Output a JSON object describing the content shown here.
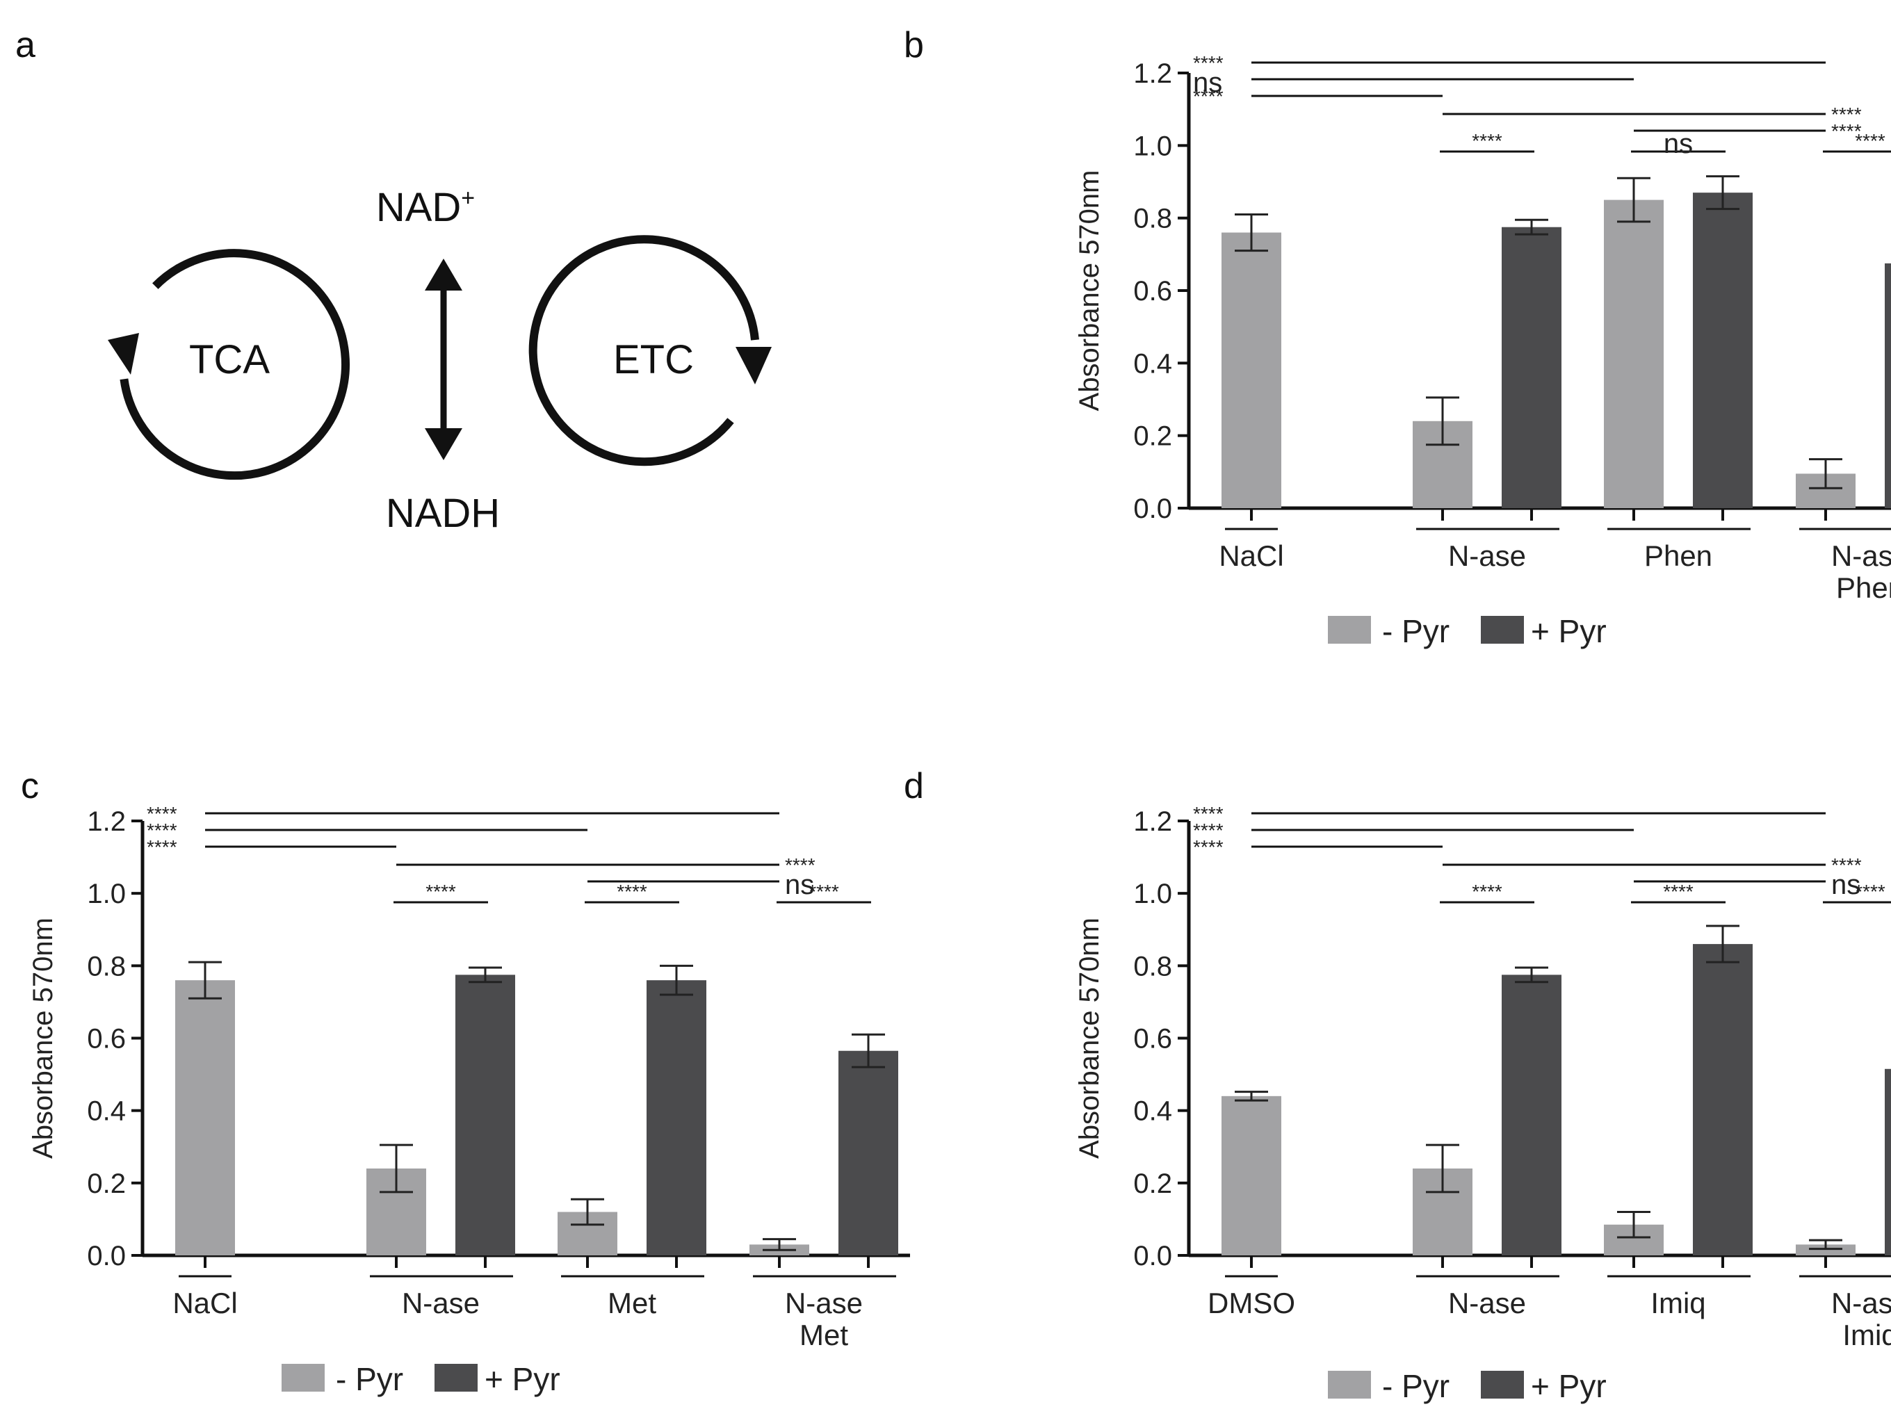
{
  "panels": {
    "a": "a",
    "b": "b",
    "c": "c",
    "d": "d"
  },
  "diagram": {
    "left_cycle": "TCA",
    "right_cycle": "ETC",
    "top_label": "NAD",
    "top_label_sup": "+",
    "bottom_label": "NADH"
  },
  "legend": {
    "minus_label": "- Pyr",
    "plus_label": "+ Pyr",
    "minus_color": "#a2a2a4",
    "plus_color": "#4b4b4d"
  },
  "chart_data": [
    {
      "panel": "b",
      "type": "bar",
      "ylabel": "Absorbance 570nm",
      "ylim": [
        0,
        1.2
      ],
      "yticks": [
        "0.0",
        "0.2",
        "0.4",
        "0.6",
        "0.8",
        "1.0",
        "1.2"
      ],
      "groups": [
        {
          "lines": [
            "NaCl"
          ],
          "bars": [
            {
              "series": "- Pyr",
              "value": 0.76,
              "error": 0.05
            }
          ]
        },
        {
          "lines": [
            "N-ase"
          ],
          "bars": [
            {
              "series": "- Pyr",
              "value": 0.24,
              "error": 0.065
            },
            {
              "series": "+ Pyr",
              "value": 0.775,
              "error": 0.02
            }
          ]
        },
        {
          "lines": [
            "Phen"
          ],
          "bars": [
            {
              "series": "- Pyr",
              "value": 0.85,
              "error": 0.06
            },
            {
              "series": "+ Pyr",
              "value": 0.87,
              "error": 0.045
            }
          ]
        },
        {
          "lines": [
            "N-ase",
            "Phen"
          ],
          "bars": [
            {
              "series": "- Pyr",
              "value": 0.095,
              "error": 0.04
            },
            {
              "series": "+ Pyr",
              "value": 0.675,
              "error": 0.085
            }
          ]
        }
      ],
      "comparisons": [
        {
          "from": [
            0,
            0
          ],
          "to": [
            3,
            0
          ],
          "label": "****"
        },
        {
          "from": [
            0,
            0
          ],
          "to": [
            2,
            0
          ],
          "label": "ns"
        },
        {
          "from": [
            0,
            0
          ],
          "to": [
            1,
            0
          ],
          "label": "****"
        },
        {
          "from": [
            1,
            0
          ],
          "to": [
            3,
            0
          ],
          "label": "****"
        },
        {
          "from": [
            2,
            0
          ],
          "to": [
            3,
            0
          ],
          "label": "****"
        },
        {
          "from": [
            1,
            0
          ],
          "to": [
            1,
            1
          ],
          "label": "****"
        },
        {
          "from": [
            2,
            0
          ],
          "to": [
            2,
            1
          ],
          "label": "ns"
        },
        {
          "from": [
            3,
            0
          ],
          "to": [
            3,
            1
          ],
          "label": "****"
        }
      ]
    },
    {
      "panel": "c",
      "type": "bar",
      "ylabel": "Absorbance 570nm",
      "ylim": [
        0,
        1.2
      ],
      "yticks": [
        "0.0",
        "0.2",
        "0.4",
        "0.6",
        "0.8",
        "1.0",
        "1.2"
      ],
      "groups": [
        {
          "lines": [
            "NaCl"
          ],
          "bars": [
            {
              "series": "- Pyr",
              "value": 0.76,
              "error": 0.05
            }
          ]
        },
        {
          "lines": [
            "N-ase"
          ],
          "bars": [
            {
              "series": "- Pyr",
              "value": 0.24,
              "error": 0.065
            },
            {
              "series": "+ Pyr",
              "value": 0.775,
              "error": 0.02
            }
          ]
        },
        {
          "lines": [
            "Met"
          ],
          "bars": [
            {
              "series": "- Pyr",
              "value": 0.12,
              "error": 0.035
            },
            {
              "series": "+ Pyr",
              "value": 0.76,
              "error": 0.04
            }
          ]
        },
        {
          "lines": [
            "N-ase",
            "Met"
          ],
          "bars": [
            {
              "series": "- Pyr",
              "value": 0.03,
              "error": 0.015
            },
            {
              "series": "+ Pyr",
              "value": 0.565,
              "error": 0.045
            }
          ]
        }
      ],
      "comparisons": [
        {
          "from": [
            0,
            0
          ],
          "to": [
            3,
            0
          ],
          "label": "****"
        },
        {
          "from": [
            0,
            0
          ],
          "to": [
            2,
            0
          ],
          "label": "****"
        },
        {
          "from": [
            0,
            0
          ],
          "to": [
            1,
            0
          ],
          "label": "****"
        },
        {
          "from": [
            1,
            0
          ],
          "to": [
            3,
            0
          ],
          "label": "****"
        },
        {
          "from": [
            2,
            0
          ],
          "to": [
            3,
            0
          ],
          "label": "ns"
        },
        {
          "from": [
            1,
            0
          ],
          "to": [
            1,
            1
          ],
          "label": "****"
        },
        {
          "from": [
            2,
            0
          ],
          "to": [
            2,
            1
          ],
          "label": "****"
        },
        {
          "from": [
            3,
            0
          ],
          "to": [
            3,
            1
          ],
          "label": "****"
        }
      ]
    },
    {
      "panel": "d",
      "type": "bar",
      "ylabel": "Absorbance 570nm",
      "ylim": [
        0,
        1.2
      ],
      "yticks": [
        "0.0",
        "0.2",
        "0.4",
        "0.6",
        "0.8",
        "1.0",
        "1.2"
      ],
      "groups": [
        {
          "lines": [
            "DMSO"
          ],
          "bars": [
            {
              "series": "- Pyr",
              "value": 0.44,
              "error": 0.012
            }
          ]
        },
        {
          "lines": [
            "N-ase"
          ],
          "bars": [
            {
              "series": "- Pyr",
              "value": 0.24,
              "error": 0.065
            },
            {
              "series": "+ Pyr",
              "value": 0.775,
              "error": 0.02
            }
          ]
        },
        {
          "lines": [
            "Imiq"
          ],
          "bars": [
            {
              "series": "- Pyr",
              "value": 0.085,
              "error": 0.035
            },
            {
              "series": "+ Pyr",
              "value": 0.86,
              "error": 0.05
            }
          ]
        },
        {
          "lines": [
            "N-ase",
            "Imiq"
          ],
          "bars": [
            {
              "series": "- Pyr",
              "value": 0.03,
              "error": 0.012
            },
            {
              "series": "+ Pyr",
              "value": 0.515,
              "error": 0.03
            }
          ]
        }
      ],
      "comparisons": [
        {
          "from": [
            0,
            0
          ],
          "to": [
            3,
            0
          ],
          "label": "****"
        },
        {
          "from": [
            0,
            0
          ],
          "to": [
            2,
            0
          ],
          "label": "****"
        },
        {
          "from": [
            0,
            0
          ],
          "to": [
            1,
            0
          ],
          "label": "****"
        },
        {
          "from": [
            1,
            0
          ],
          "to": [
            3,
            0
          ],
          "label": "****"
        },
        {
          "from": [
            2,
            0
          ],
          "to": [
            3,
            0
          ],
          "label": "ns"
        },
        {
          "from": [
            1,
            0
          ],
          "to": [
            1,
            1
          ],
          "label": "****"
        },
        {
          "from": [
            2,
            0
          ],
          "to": [
            2,
            1
          ],
          "label": "****"
        },
        {
          "from": [
            3,
            0
          ],
          "to": [
            3,
            1
          ],
          "label": "****"
        }
      ]
    }
  ]
}
